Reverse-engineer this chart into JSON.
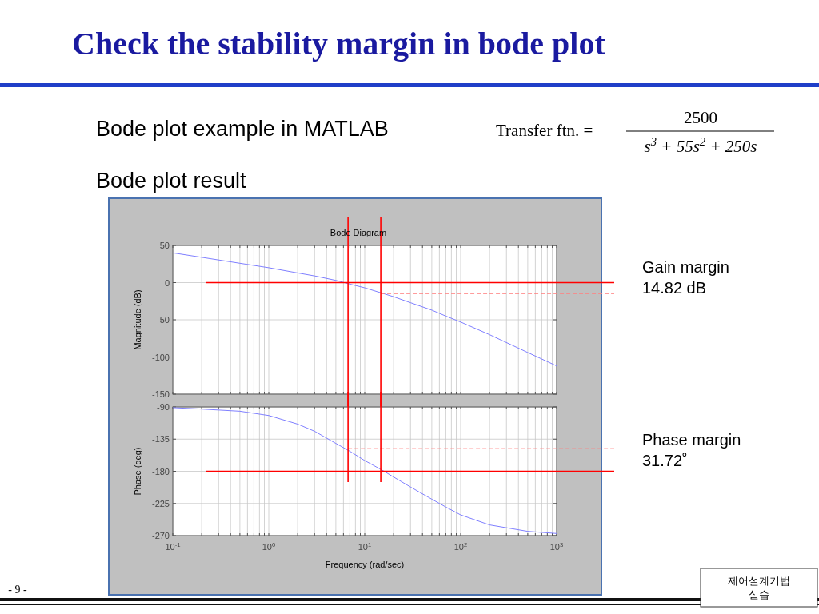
{
  "chart_data": [
    {
      "type": "line",
      "title": "Bode Diagram",
      "ylabel": "Magnitude (dB)",
      "x": [
        0.1,
        0.2,
        0.5,
        1,
        2,
        3,
        5,
        7,
        10,
        15,
        20,
        30,
        50,
        70,
        100,
        200,
        500,
        1000
      ],
      "series": [
        {
          "color": "#8080ff",
          "values": [
            40,
            34,
            26,
            20,
            13,
            9,
            3,
            -2,
            -7,
            -14,
            -19,
            -27,
            -37,
            -45,
            -53,
            -70,
            -94,
            -112
          ]
        }
      ],
      "xlim": [
        0.1,
        1000
      ],
      "ylim": [
        -150,
        50
      ],
      "yticks": [
        -150,
        -100,
        -50,
        0,
        50
      ],
      "xticks": [
        {
          "value": 0.1,
          "label": null
        },
        {
          "value": 0.2,
          "label": null
        },
        {
          "value": 0.3,
          "label": null
        },
        {
          "value": 0.4,
          "label": null
        },
        {
          "value": 0.5,
          "label": null
        },
        {
          "value": 0.6,
          "label": null
        },
        {
          "value": 0.7,
          "label": null
        },
        {
          "value": 0.8,
          "label": null
        },
        {
          "value": 0.9,
          "label": null
        },
        {
          "value": 1,
          "label": null
        },
        {
          "value": 2,
          "label": null
        },
        {
          "value": 3,
          "label": null
        },
        {
          "value": 4,
          "label": null
        },
        {
          "value": 5,
          "label": null
        },
        {
          "value": 6,
          "label": null
        },
        {
          "value": 7,
          "label": null
        },
        {
          "value": 8,
          "label": null
        },
        {
          "value": 9,
          "label": null
        },
        {
          "value": 10,
          "label": null
        },
        {
          "value": 20,
          "label": null
        },
        {
          "value": 30,
          "label": null
        },
        {
          "value": 40,
          "label": null
        },
        {
          "value": 50,
          "label": null
        },
        {
          "value": 60,
          "label": null
        },
        {
          "value": 70,
          "label": null
        },
        {
          "value": 80,
          "label": null
        },
        {
          "value": 90,
          "label": null
        },
        {
          "value": 100,
          "label": null
        },
        {
          "value": 200,
          "label": null
        },
        {
          "value": 300,
          "label": null
        },
        {
          "value": 400,
          "label": null
        },
        {
          "value": 500,
          "label": null
        },
        {
          "value": 600,
          "label": null
        },
        {
          "value": 700,
          "label": null
        },
        {
          "value": 800,
          "label": null
        },
        {
          "value": 900,
          "label": null
        },
        {
          "value": 1000,
          "label": null
        }
      ],
      "log": "x",
      "grid": true,
      "tick_labels": "y",
      "ref_lines": [
        {
          "axis": "y",
          "value": 0,
          "color": "#ff0000",
          "line_style": "solid"
        },
        {
          "axis": "y",
          "value": -14.82,
          "color": "#ff8080",
          "line_style": "dashed"
        },
        {
          "axis": "x",
          "value": 6.7,
          "color": "#ff0000",
          "line_style": "solid"
        },
        {
          "axis": "x",
          "value": 14.7,
          "color": "#ff0000",
          "line_style": "solid"
        }
      ],
      "annotations": [
        "Check the stability margin in bode plot",
        "Bode plot example in MATLAB",
        "Transfer ftn. =",
        "2500",
        "s$^{3}$ + 55s$^{2}$ + 250s",
        "Bode plot result",
        "Gain margin 14.82 dB",
        "- 9 -",
        "제어설계기법 실습"
      ]
    },
    {
      "type": "line",
      "ylabel": "Phase (deg)",
      "xlabel": "Frequency  (rad/sec)",
      "x": [
        0.1,
        0.2,
        0.5,
        1,
        2,
        3,
        5,
        7,
        10,
        15,
        20,
        30,
        50,
        70,
        100,
        200,
        500,
        1000
      ],
      "series": [
        {
          "color": "#8080ff",
          "values": [
            -91,
            -93,
            -96,
            -102,
            -114,
            -124,
            -141,
            -152,
            -165,
            -178,
            -188,
            -202,
            -219,
            -230,
            -241,
            -255,
            -264,
            -267
          ]
        }
      ],
      "xlim": [
        0.1,
        1000
      ],
      "ylim": [
        -270,
        -90
      ],
      "yticks": [
        -270,
        -225,
        -180,
        -135,
        -90
      ],
      "xticks": [
        {
          "value": 0.1,
          "label": "10$^{-1}$"
        },
        {
          "value": 0.2,
          "label": null
        },
        {
          "value": 0.3,
          "label": null
        },
        {
          "value": 0.4,
          "label": null
        },
        {
          "value": 0.5,
          "label": null
        },
        {
          "value": 0.6,
          "label": null
        },
        {
          "value": 0.7,
          "label": null
        },
        {
          "value": 0.8,
          "label": null
        },
        {
          "value": 0.9,
          "label": null
        },
        {
          "value": 1,
          "label": "10$^{0}$"
        },
        {
          "value": 2,
          "label": null
        },
        {
          "value": 3,
          "label": null
        },
        {
          "value": 4,
          "label": null
        },
        {
          "value": 5,
          "label": null
        },
        {
          "value": 6,
          "label": null
        },
        {
          "value": 7,
          "label": null
        },
        {
          "value": 8,
          "label": null
        },
        {
          "value": 9,
          "label": null
        },
        {
          "value": 10,
          "label": "10$^{1}$"
        },
        {
          "value": 20,
          "label": null
        },
        {
          "value": 30,
          "label": null
        },
        {
          "value": 40,
          "label": null
        },
        {
          "value": 50,
          "label": null
        },
        {
          "value": 60,
          "label": null
        },
        {
          "value": 70,
          "label": null
        },
        {
          "value": 80,
          "label": null
        },
        {
          "value": 90,
          "label": null
        },
        {
          "value": 100,
          "label": "10$^{2}$"
        },
        {
          "value": 200,
          "label": null
        },
        {
          "value": 300,
          "label": null
        },
        {
          "value": 400,
          "label": null
        },
        {
          "value": 500,
          "label": null
        },
        {
          "value": 600,
          "label": null
        },
        {
          "value": 700,
          "label": null
        },
        {
          "value": 800,
          "label": null
        },
        {
          "value": 900,
          "label": null
        },
        {
          "value": 1000,
          "label": "10$^{3}$"
        }
      ],
      "log": "x",
      "grid": true,
      "ref_lines": [
        {
          "axis": "y",
          "value": -180,
          "color": "#ff0000",
          "line_style": "solid"
        },
        {
          "axis": "y",
          "value": -148.28,
          "color": "#ff8080",
          "line_style": "dashed"
        },
        {
          "axis": "x",
          "value": 6.7,
          "color": "#ff0000",
          "line_style": "solid"
        },
        {
          "axis": "x",
          "value": 14.7,
          "color": "#ff0000",
          "line_style": "solid"
        }
      ],
      "annotations": [
        "Phase margin 31.72˚"
      ]
    }
  ]
}
